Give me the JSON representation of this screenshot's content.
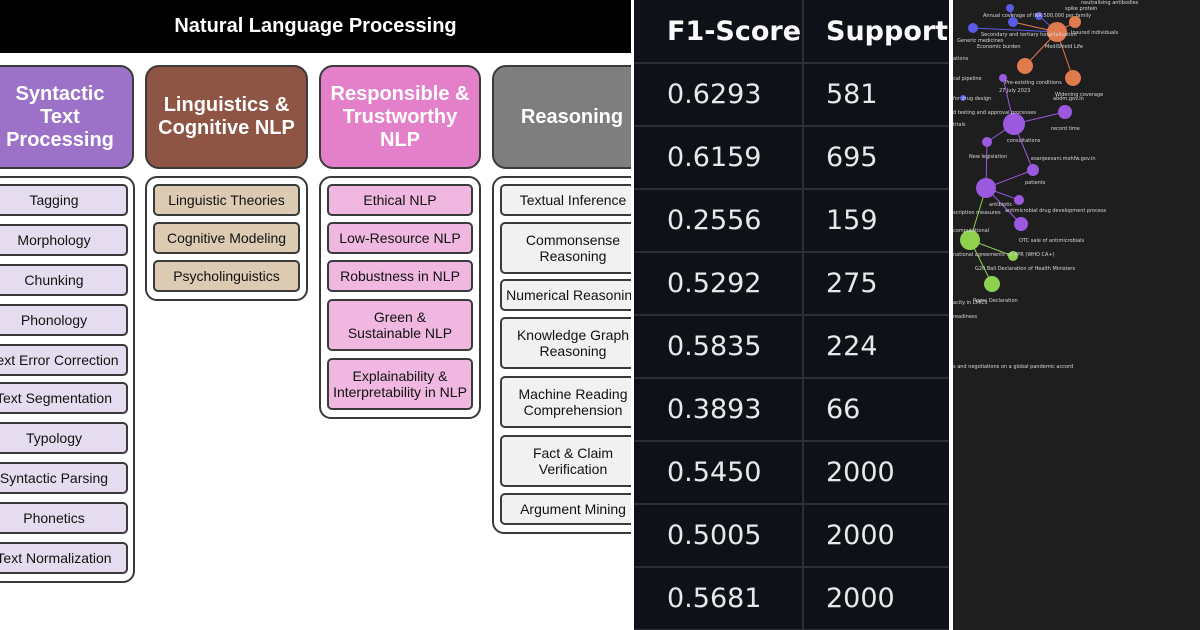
{
  "taxonomy": {
    "title": "Natural Language Processing",
    "colors": {
      "syntactic": "#9b72c8",
      "linguistics": "#8e5444",
      "responsible": "#e47fc9",
      "reasoning": "#7e7e7e"
    },
    "categories": {
      "syntactic": {
        "title": "Syntactic\nText\nProcessing",
        "items": [
          "Tagging",
          "Morphology",
          "Chunking",
          "Phonology",
          "Text Error Correction",
          "Text Segmentation",
          "Typology",
          "Syntactic Parsing",
          "Phonetics",
          "Text Normalization"
        ]
      },
      "linguistics": {
        "title": "Linguistics &\nCognitive NLP",
        "items": [
          "Linguistic Theories",
          "Cognitive Modeling",
          "Psycholinguistics"
        ]
      },
      "responsible": {
        "title": "Responsible &\nTrustworthy NLP",
        "items": [
          "Ethical NLP",
          "Low-Resource NLP",
          "Robustness in NLP",
          "Green &\nSustainable NLP",
          "Explainability &\nInterpretability in NLP"
        ]
      },
      "reasoning": {
        "title": "Reasoning",
        "items": [
          "Textual Inference",
          "Commonsense\nReasoning",
          "Numerical Reasoning",
          "Knowledge Graph\nReasoning",
          "Machine Reading\nComprehension",
          "Fact & Claim\nVerification",
          "Argument Mining"
        ]
      }
    }
  },
  "metrics_table": {
    "headers": [
      "F1-Score",
      "Support"
    ],
    "rows": [
      [
        "0.6293",
        "581"
      ],
      [
        "0.6159",
        "695"
      ],
      [
        "0.2556",
        "159"
      ],
      [
        "0.5292",
        "275"
      ],
      [
        "0.5835",
        "224"
      ],
      [
        "0.3893",
        "66"
      ],
      [
        "0.5450",
        "2000"
      ],
      [
        "0.5005",
        "2000"
      ],
      [
        "0.5681",
        "2000"
      ]
    ]
  },
  "network_graph": {
    "colors": {
      "background": "#1e1e1e",
      "edge_purple": "#9b59e0",
      "edge_orange": "#e07a4f",
      "edge_green": "#8fd14f"
    },
    "labels": [
      "neutralising antibodies",
      "Annual coverage of INR 500,000 per family",
      "spike protein",
      "Secondary and tertiary hospitalisation",
      "Insured individuals",
      "Generic medicines",
      "Economic burden",
      "MediShield Life",
      "ations",
      "cal pipeline",
      "Pre-existing conditions",
      "27 July 2023",
      "Widening coverage",
      "abdm.gov.in",
      "for drug design",
      "d testing and approval processes",
      "record time",
      "trials",
      "consultations",
      "New legislation",
      "esanjeevani.mohfw.gov.in",
      "patients",
      "antibiotic",
      "antimicrobial drug development process",
      "scription measures",
      "computational",
      "OTC sale of antimicrobials",
      "national agreements on PPR (WHO CA+)",
      "G20 Bali Declaration of Health Ministers",
      "Rome Declaration",
      "acity in LMICs",
      "readiness",
      "s and negotiations on a global pandemic accord"
    ]
  }
}
